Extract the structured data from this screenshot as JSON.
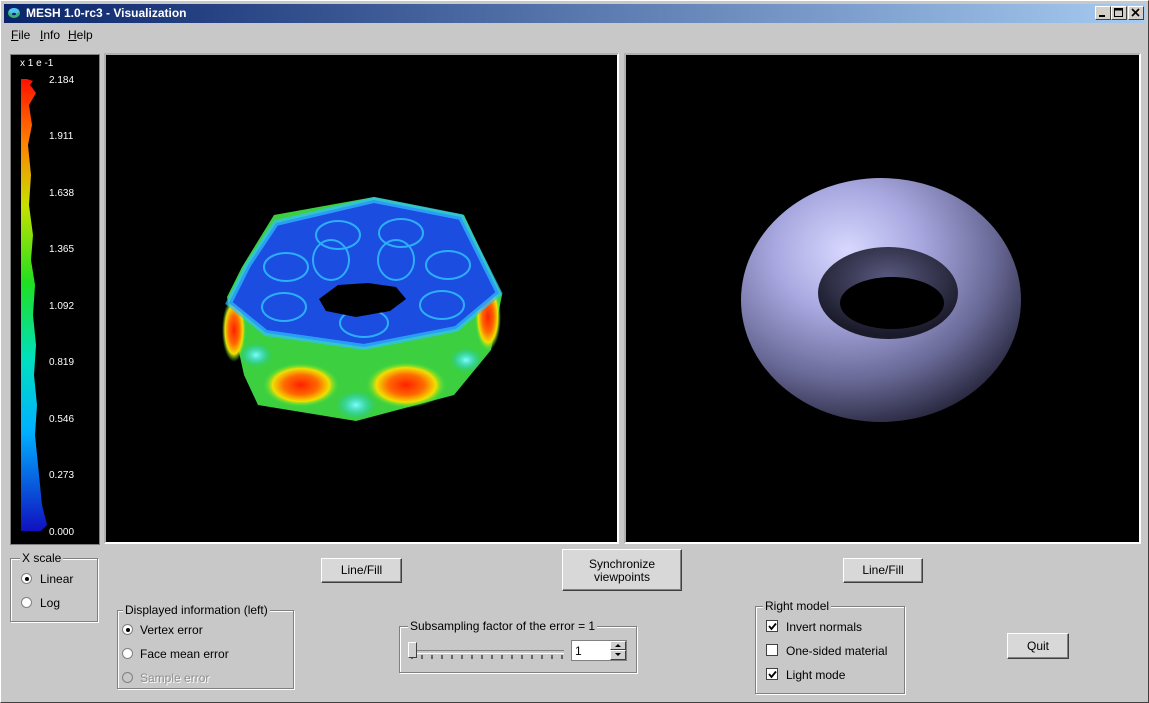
{
  "window": {
    "title": "MESH 1.0-rc3 - Visualization",
    "controls": {
      "minimize": "minimize-icon",
      "maximize": "maximize-icon",
      "close": "close-icon"
    }
  },
  "menu": {
    "items": [
      "File",
      "Info",
      "Help"
    ]
  },
  "colorbar": {
    "unit": "x 1 e -1",
    "ticks": [
      "2.184",
      "1.911",
      "1.638",
      "1.365",
      "1.092",
      "0.819",
      "0.546",
      "0.273",
      "0.000"
    ]
  },
  "buttons": {
    "left_linefill": "Line/Fill",
    "sync_line1": "Synchronize",
    "sync_line2": "viewpoints",
    "right_linefill": "Line/Fill",
    "quit": "Quit"
  },
  "xscale": {
    "legend": "X scale",
    "options": [
      {
        "label": "Linear",
        "selected": true
      },
      {
        "label": "Log",
        "selected": false
      }
    ]
  },
  "displayed_info": {
    "legend": "Displayed information (left)",
    "options": [
      {
        "label": "Vertex error",
        "selected": true,
        "enabled": true
      },
      {
        "label": "Face mean error",
        "selected": false,
        "enabled": true
      },
      {
        "label": "Sample error",
        "selected": false,
        "enabled": false
      }
    ]
  },
  "subsampling": {
    "legend": "Subsampling factor of the error = 1",
    "value": "1",
    "slider_fraction": 0.0
  },
  "right_model": {
    "legend": "Right model",
    "options": [
      {
        "label": "Invert normals",
        "checked": true
      },
      {
        "label": "One-sided material",
        "checked": false
      },
      {
        "label": "Light mode",
        "checked": true
      }
    ]
  },
  "colors": {
    "title_start": "#0a246a",
    "title_end": "#a6caf0",
    "window_bg": "#c8c8c8",
    "view_bg": "#000000",
    "right_mesh": "#a8a8e0"
  }
}
